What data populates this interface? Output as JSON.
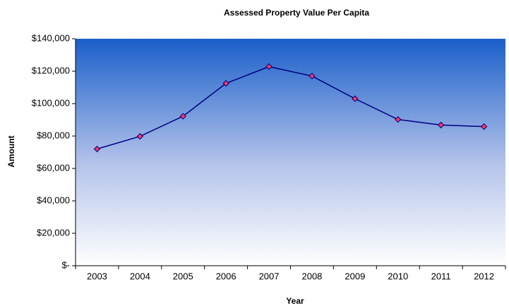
{
  "chart_data": {
    "type": "line",
    "title": "Assessed Property Value Per Capita",
    "x_label": "Year",
    "y_label": "Amount",
    "categories": [
      "2003",
      "2004",
      "2005",
      "2006",
      "2007",
      "2008",
      "2009",
      "2010",
      "2011",
      "2012"
    ],
    "series": [
      {
        "name": "Assessed Property Value Per Capita",
        "color": "#000080",
        "values": [
          72000,
          79800,
          92200,
          112500,
          122800,
          117000,
          103000,
          90200,
          86800,
          85800
        ]
      }
    ],
    "marker_color": "#ff3366",
    "ylim": [
      0,
      140000
    ],
    "yticks": [
      {
        "value": 0,
        "label": "$-"
      },
      {
        "value": 20000,
        "label": "$20,000"
      },
      {
        "value": 40000,
        "label": "$40,000"
      },
      {
        "value": 60000,
        "label": "$60,000"
      },
      {
        "value": 80000,
        "label": "$80,000"
      },
      {
        "value": 100000,
        "label": "$100,000"
      },
      {
        "value": 120000,
        "label": "$120,000"
      },
      {
        "value": 140000,
        "label": "$140,000"
      }
    ],
    "grid": false
  }
}
